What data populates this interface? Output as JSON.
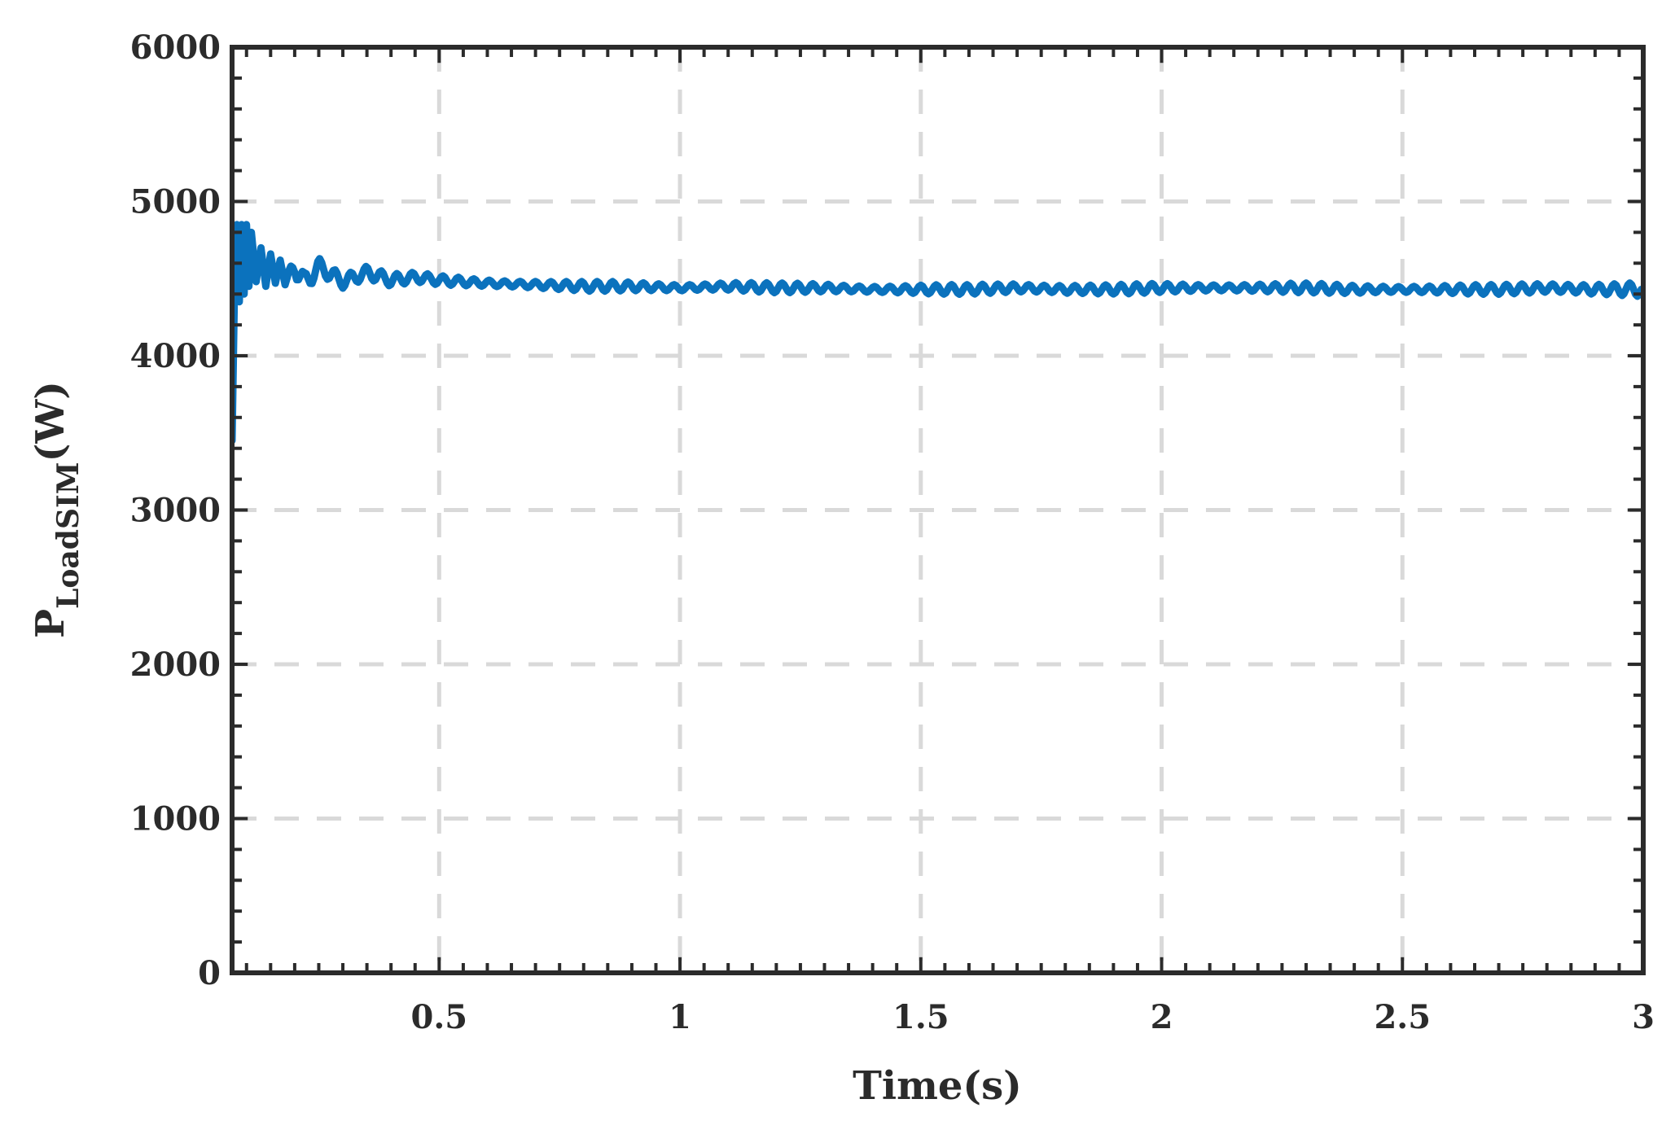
{
  "chart_data": {
    "type": "line",
    "title": "",
    "xlabel": "Time(s)",
    "ylabel": {
      "main": "P",
      "subscript": "LoadSIM",
      "suffix": "(W)"
    },
    "xlim": [
      0.07,
      3.0
    ],
    "ylim": [
      0,
      6000
    ],
    "xticks": [
      0.5,
      1,
      1.5,
      2,
      2.5,
      3
    ],
    "xtick_labels": [
      "0.5",
      "1",
      "1.5",
      "2",
      "2.5",
      "3"
    ],
    "yticks": [
      0,
      1000,
      2000,
      3000,
      4000,
      5000,
      6000
    ],
    "ytick_labels": [
      "0",
      "1000",
      "2000",
      "3000",
      "4000",
      "5000",
      "6000"
    ],
    "grid": true,
    "grid_style": "dashed",
    "legend": "none",
    "series": [
      {
        "color": "#0b72bd",
        "x": [
          0.07,
          0.075,
          0.08,
          0.085,
          0.09,
          0.095,
          0.1,
          0.105,
          0.11,
          0.12,
          0.13,
          0.14,
          0.15,
          0.16,
          0.17,
          0.18,
          0.2,
          0.22,
          0.25,
          0.3,
          0.35,
          0.4,
          0.45,
          0.5,
          0.6,
          0.7,
          0.8,
          0.9,
          1.0,
          1.1,
          1.2,
          1.3,
          1.4,
          1.5,
          1.6,
          1.7,
          1.8,
          1.9,
          2.0,
          2.1,
          2.2,
          2.3,
          2.4,
          2.5,
          2.6,
          2.7,
          2.8,
          2.9,
          3.0
        ],
        "y": [
          3450,
          4450,
          4850,
          4350,
          4850,
          4400,
          4850,
          4450,
          4800,
          4480,
          4700,
          4450,
          4660,
          4470,
          4620,
          4460,
          4600,
          4470,
          4580,
          4480,
          4540,
          4490,
          4510,
          4490,
          4470,
          4460,
          4450,
          4450,
          4440,
          4450,
          4440,
          4440,
          4430,
          4430,
          4430,
          4440,
          4430,
          4430,
          4440,
          4440,
          4440,
          4440,
          4430,
          4430,
          4430,
          4430,
          4440,
          4430,
          4430
        ],
        "ripple_amplitude": [
          0,
          0,
          0,
          0,
          0,
          0,
          0,
          0,
          0,
          0,
          0,
          0,
          0,
          0,
          0,
          0,
          90,
          80,
          70,
          55,
          45,
          35,
          25,
          25,
          25,
          25,
          25,
          25,
          25,
          25,
          25,
          25,
          25,
          25,
          25,
          30,
          30,
          25,
          25,
          25,
          25,
          25,
          25,
          25,
          25,
          25,
          30,
          40,
          40
        ]
      }
    ]
  }
}
